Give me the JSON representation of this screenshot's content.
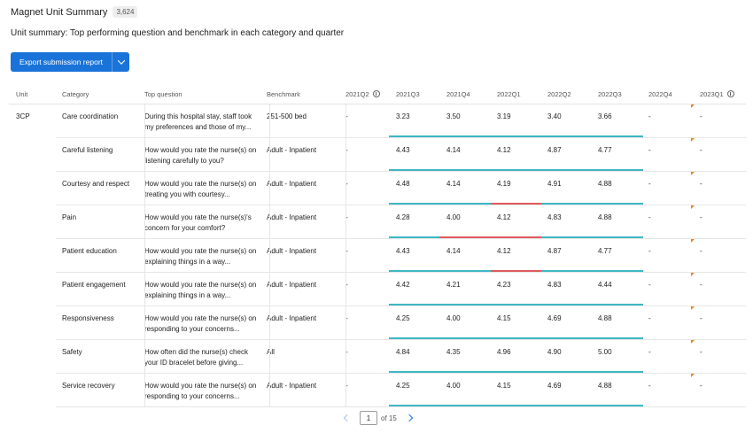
{
  "header": {
    "title": "Magnet Unit Summary",
    "count": "3,624"
  },
  "subtitle": "Unit summary: Top performing question and benchmark in each category and quarter",
  "toolbar": {
    "export_label": "Export submission report"
  },
  "colors": {
    "teal": "#3fb8c4",
    "red": "#e05a5e",
    "flag": "#e0891f",
    "primary": "#1a73d9"
  },
  "table": {
    "columns": [
      "Unit",
      "Category",
      "Top question",
      "Benchmark",
      "2021Q2",
      "2021Q3",
      "2021Q4",
      "2022Q1",
      "2022Q2",
      "2022Q3",
      "2022Q4",
      "2023Q1"
    ],
    "rows": [
      {
        "unit": "3CP",
        "category": "Care coordination",
        "question": "During this hospital stay, staff took my preferences and those of my...",
        "benchmark": "251-500 bed",
        "values": [
          "-",
          "3.23",
          "3.50",
          "3.19",
          "3.40",
          "3.66",
          "-",
          "-"
        ],
        "bar": [
          "teal",
          "teal",
          "teal",
          "teal",
          "teal"
        ]
      },
      {
        "unit": "",
        "category": "Careful listening",
        "question": "How would you rate the nurse(s) on listening carefully to you?",
        "benchmark": "Adult - Inpatient",
        "values": [
          "-",
          "4.43",
          "4.14",
          "4.12",
          "4.87",
          "4.77",
          "-",
          "-"
        ],
        "bar": [
          "teal",
          "teal",
          "teal",
          "teal",
          "teal"
        ]
      },
      {
        "unit": "",
        "category": "Courtesy and respect",
        "question": "How would you rate the nurse(s) on treating you with courtesy...",
        "benchmark": "Adult - Inpatient",
        "values": [
          "-",
          "4.48",
          "4.14",
          "4.19",
          "4.91",
          "4.88",
          "-",
          "-"
        ],
        "bar": [
          "teal",
          "teal",
          "red",
          "teal",
          "teal"
        ]
      },
      {
        "unit": "",
        "category": "Pain",
        "question": "How would you rate the nurse(s)'s concern for your comfort?",
        "benchmark": "Adult - Inpatient",
        "values": [
          "-",
          "4.28",
          "4.00",
          "4.12",
          "4.83",
          "4.88",
          "-",
          "-"
        ],
        "bar": [
          "teal",
          "red",
          "red",
          "teal",
          "teal"
        ]
      },
      {
        "unit": "",
        "category": "Patient education",
        "question": "How would you rate the nurse(s) on explaining things in a way...",
        "benchmark": "Adult - Inpatient",
        "values": [
          "-",
          "4.43",
          "4.14",
          "4.12",
          "4.87",
          "4.77",
          "-",
          "-"
        ],
        "bar": [
          "teal",
          "teal",
          "red",
          "teal",
          "teal"
        ]
      },
      {
        "unit": "",
        "category": "Patient engagement",
        "question": "How would you rate the nurse(s) on explaining things in a way...",
        "benchmark": "Adult - Inpatient",
        "values": [
          "-",
          "4.42",
          "4.21",
          "4.23",
          "4.83",
          "4.44",
          "-",
          "-"
        ],
        "bar": [
          "teal",
          "teal",
          "teal",
          "teal",
          "teal"
        ]
      },
      {
        "unit": "",
        "category": "Responsiveness",
        "question": "How would you rate the nurse(s) on responding to your concerns...",
        "benchmark": "Adult - Inpatient",
        "values": [
          "-",
          "4.25",
          "4.00",
          "4.15",
          "4.69",
          "4.88",
          "-",
          "-"
        ],
        "bar": [
          "teal",
          "teal",
          "teal",
          "teal",
          "teal"
        ]
      },
      {
        "unit": "",
        "category": "Safety",
        "question": "How often did the nurse(s) check your ID bracelet before giving...",
        "benchmark": "All",
        "values": [
          "-",
          "4.84",
          "4.35",
          "4.96",
          "4.90",
          "5.00",
          "-",
          "-"
        ],
        "bar": [
          "teal",
          "teal",
          "teal",
          "teal",
          "teal"
        ]
      },
      {
        "unit": "",
        "category": "Service recovery",
        "question": "How would you rate the nurse(s) on responding to your concerns...",
        "benchmark": "Adult - Inpatient",
        "values": [
          "-",
          "4.25",
          "4.00",
          "4.15",
          "4.69",
          "4.88",
          "-",
          "-"
        ],
        "bar": [
          "teal",
          "teal",
          "teal",
          "teal",
          "teal"
        ]
      }
    ]
  },
  "pagination": {
    "current": "1",
    "of_label": "of 15"
  }
}
